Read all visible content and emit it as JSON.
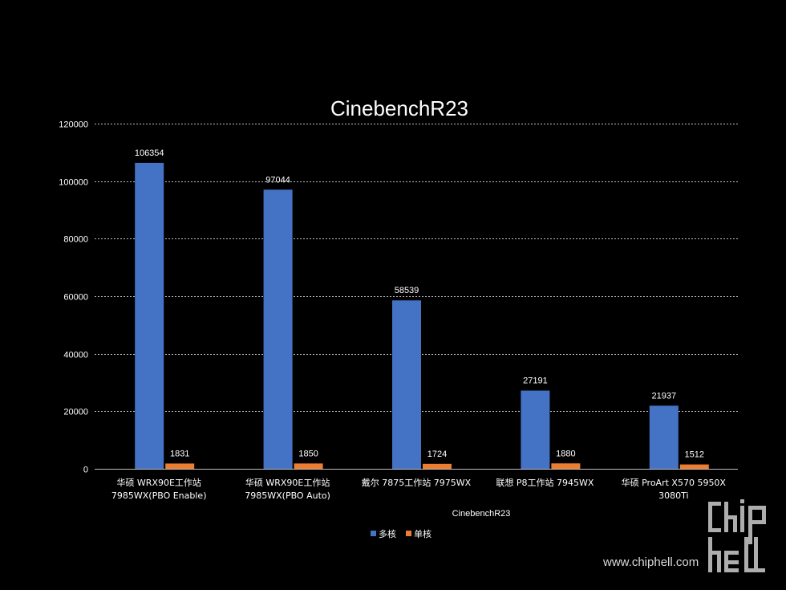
{
  "chart_data": {
    "type": "bar",
    "title": "CinebenchR23",
    "xlabel": "CinebenchR23",
    "ylabel": "",
    "ylim": [
      0,
      120000
    ],
    "yticks": [
      0,
      20000,
      40000,
      60000,
      80000,
      100000,
      120000
    ],
    "categories": [
      [
        "华硕 WRX90E工作站",
        "7985WX(PBO Enable)"
      ],
      [
        "华硕 WRX90E工作站",
        "7985WX(PBO Auto)"
      ],
      [
        "戴尔 7875工作站  7975WX"
      ],
      [
        "联想  P8工作站     7945WX"
      ],
      [
        "华硕  ProArt X570  5950X",
        "3080Ti"
      ]
    ],
    "series": [
      {
        "name": "多核",
        "color": "#4472c4",
        "values": [
          106354,
          97044,
          58539,
          27191,
          21937
        ]
      },
      {
        "name": "单核",
        "color": "#ed7d31",
        "values": [
          1831,
          1850,
          1724,
          1880,
          1512
        ]
      }
    ],
    "grid": true,
    "legend_position": "bottom"
  },
  "watermark": {
    "logo_text": "chip hell",
    "url": "www.chiphell.com"
  }
}
